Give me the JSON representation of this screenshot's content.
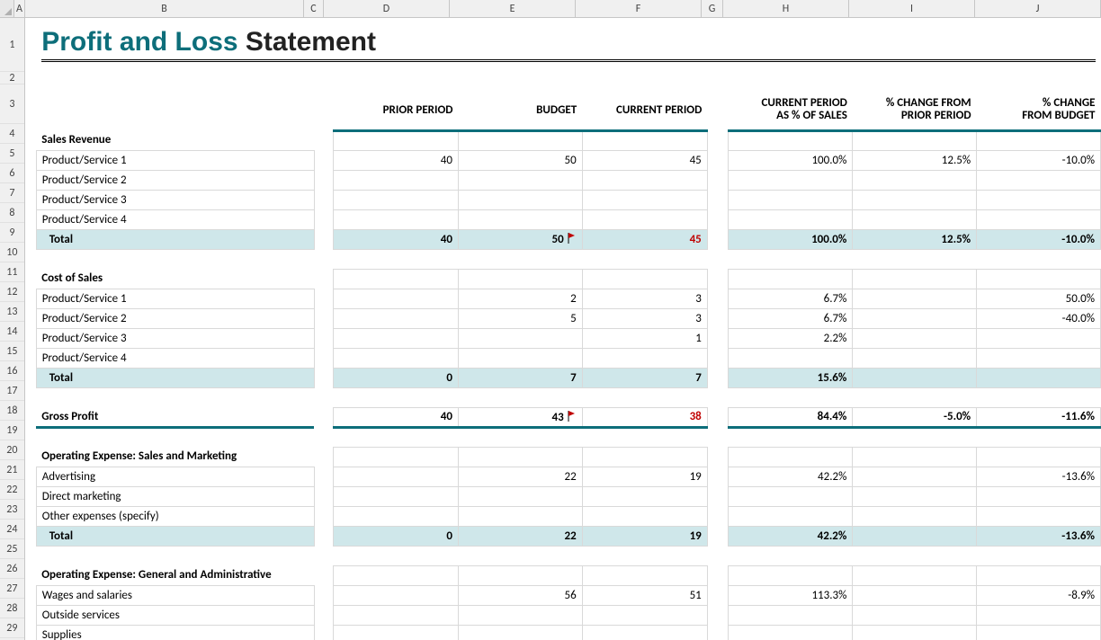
{
  "columns": {
    "letters": [
      "A",
      "B",
      "C",
      "D",
      "E",
      "F",
      "G",
      "H",
      "I",
      "J"
    ],
    "widths": [
      12,
      310,
      22,
      140,
      140,
      140,
      24,
      140,
      140,
      140
    ]
  },
  "rows": {
    "heights": [
      60,
      14,
      44,
      22,
      22,
      22,
      22,
      22,
      22,
      22,
      22,
      22,
      22,
      22,
      22,
      22,
      22,
      22,
      22,
      22,
      22,
      22,
      22,
      22,
      22,
      22,
      22,
      22,
      22
    ],
    "count": 29
  },
  "title": {
    "part1": "Profit and Loss",
    "part2": " Statement"
  },
  "headers": {
    "D": "PRIOR PERIOD",
    "E": "BUDGET",
    "F": "CURRENT PERIOD",
    "H": "CURRENT PERIOD AS % OF SALES",
    "I": "% CHANGE FROM PRIOR PERIOD",
    "J": "% CHANGE FROM BUDGET"
  },
  "sections": [
    {
      "name": "Sales Revenue",
      "items": [
        {
          "label": "Product/Service 1",
          "D": "40",
          "E": "50",
          "F": "45",
          "H": "100.0%",
          "I": "12.5%",
          "J": "-10.0%"
        },
        {
          "label": "Product/Service 2"
        },
        {
          "label": "Product/Service 3"
        },
        {
          "label": "Product/Service 4"
        }
      ],
      "total": {
        "label": "Total",
        "D": "40",
        "E": "50",
        "F": "45",
        "Fflag": true,
        "Fred": true,
        "H": "100.0%",
        "I": "12.5%",
        "J": "-10.0%"
      }
    },
    {
      "name": "Cost of Sales",
      "items": [
        {
          "label": "Product/Service 1",
          "E": "2",
          "F": "3",
          "H": "6.7%",
          "J": "50.0%"
        },
        {
          "label": "Product/Service 2",
          "E": "5",
          "F": "3",
          "H": "6.7%",
          "J": "-40.0%"
        },
        {
          "label": "Product/Service 3",
          "F": "1",
          "H": "2.2%"
        },
        {
          "label": "Product/Service 4"
        }
      ],
      "total": {
        "label": "Total",
        "D": "0",
        "E": "7",
        "F": "7",
        "H": "15.6%"
      }
    },
    {
      "name": "Gross Profit",
      "isLine": true,
      "line": {
        "D": "40",
        "E": "43",
        "F": "38",
        "Fflag": true,
        "Fred": true,
        "H": "84.4%",
        "I": "-5.0%",
        "J": "-11.6%"
      }
    },
    {
      "name": "Operating Expense: Sales and Marketing",
      "items": [
        {
          "label": "Advertising",
          "E": "22",
          "F": "19",
          "H": "42.2%",
          "J": "-13.6%"
        },
        {
          "label": "Direct marketing"
        },
        {
          "label": "Other expenses (specify)"
        }
      ],
      "total": {
        "label": "Total",
        "D": "0",
        "E": "22",
        "F": "19",
        "H": "42.2%",
        "J": "-13.6%"
      }
    },
    {
      "name": "Operating Expense: General and Administrative",
      "items": [
        {
          "label": "Wages and salaries",
          "E": "56",
          "F": "51",
          "H": "113.3%",
          "J": "-8.9%"
        },
        {
          "label": "Outside services"
        },
        {
          "label": "Supplies"
        }
      ]
    }
  ],
  "colors": {
    "teal": "#0d6e7a",
    "totalbg": "#cfe7ea",
    "red": "#c00000",
    "gridline": "#d9d9d9"
  }
}
